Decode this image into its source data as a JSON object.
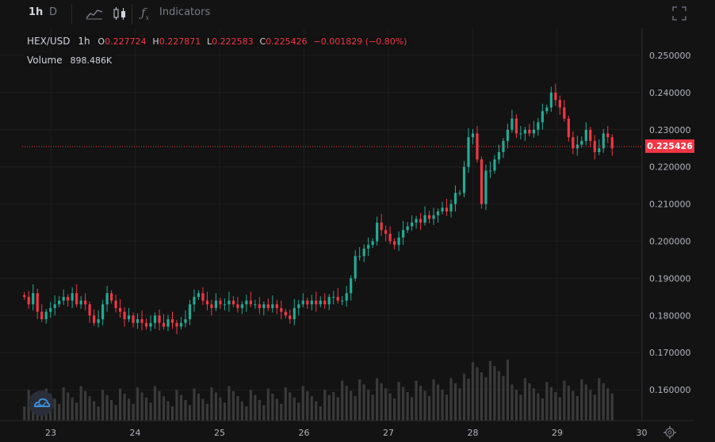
{
  "toolbar": {
    "interval_1h": "1h",
    "interval_d": "D",
    "indicators_label": "Indicators"
  },
  "legend": {
    "symbol": "HEX/USD",
    "interval": "1h",
    "o_label": "O",
    "o_value": "0.227724",
    "h_label": "H",
    "h_value": "0.227871",
    "l_label": "L",
    "l_value": "0.222583",
    "c_label": "C",
    "c_value": "0.225426",
    "change": "−0.001829 (−0.80%)",
    "volume_label": "Volume",
    "volume_value": "898.486K"
  },
  "price_axis": [
    "0.250000",
    "0.240000",
    "0.230000",
    "0.220000",
    "0.210000",
    "0.200000",
    "0.190000",
    "0.180000",
    "0.170000",
    "0.160000"
  ],
  "time_axis": [
    "23",
    "24",
    "25",
    "26",
    "27",
    "28",
    "29",
    "30"
  ],
  "current_price": "0.225426",
  "colors": {
    "up": "#22ab94",
    "down": "#f23645",
    "bg": "#131313"
  },
  "chart_data": {
    "type": "candlestick",
    "y_range": [
      0.152,
      0.254
    ],
    "x_range_days": [
      22.7,
      30.0
    ],
    "closes": [
      0.185,
      0.183,
      0.186,
      0.181,
      0.179,
      0.181,
      0.182,
      0.183,
      0.184,
      0.185,
      0.184,
      0.186,
      0.183,
      0.184,
      0.183,
      0.18,
      0.178,
      0.179,
      0.183,
      0.186,
      0.184,
      0.182,
      0.181,
      0.179,
      0.18,
      0.178,
      0.179,
      0.178,
      0.177,
      0.178,
      0.18,
      0.178,
      0.177,
      0.179,
      0.178,
      0.177,
      0.178,
      0.179,
      0.183,
      0.185,
      0.186,
      0.184,
      0.183,
      0.182,
      0.184,
      0.183,
      0.183,
      0.184,
      0.183,
      0.182,
      0.183,
      0.184,
      0.183,
      0.183,
      0.182,
      0.183,
      0.182,
      0.183,
      0.182,
      0.181,
      0.18,
      0.179,
      0.182,
      0.183,
      0.184,
      0.183,
      0.184,
      0.183,
      0.184,
      0.183,
      0.185,
      0.185,
      0.184,
      0.184,
      0.186,
      0.19,
      0.196,
      0.196,
      0.198,
      0.199,
      0.2,
      0.205,
      0.203,
      0.202,
      0.2,
      0.199,
      0.201,
      0.203,
      0.204,
      0.205,
      0.206,
      0.205,
      0.207,
      0.206,
      0.207,
      0.208,
      0.209,
      0.208,
      0.21,
      0.213,
      0.213,
      0.22,
      0.228,
      0.229,
      0.222,
      0.21,
      0.219,
      0.219,
      0.222,
      0.224,
      0.227,
      0.23,
      0.233,
      0.229,
      0.229,
      0.23,
      0.229,
      0.23,
      0.232,
      0.235,
      0.236,
      0.24,
      0.238,
      0.236,
      0.233,
      0.228,
      0.225,
      0.226,
      0.227,
      0.23,
      0.227,
      0.224,
      0.225,
      0.229,
      0.228,
      0.225
    ]
  }
}
